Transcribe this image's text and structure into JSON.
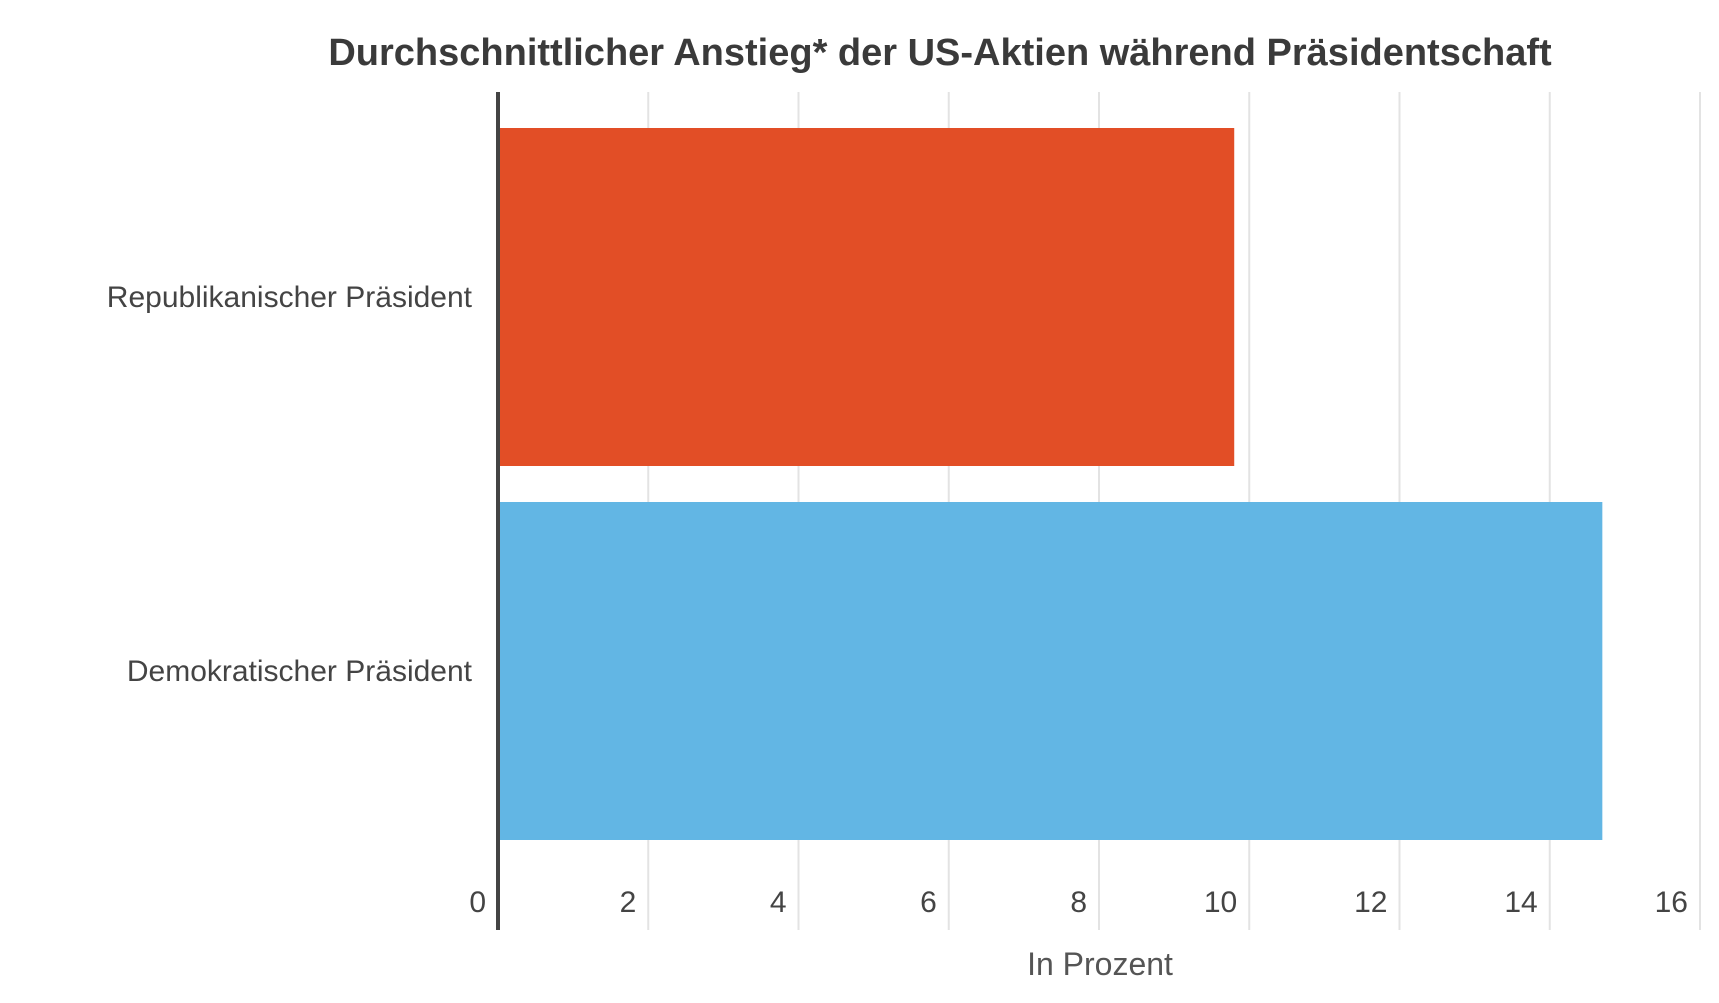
{
  "chart_data": {
    "type": "bar",
    "orientation": "horizontal",
    "title": "Durchschnittlicher Anstieg* der US-Aktien während Präsidentschaft",
    "categories": [
      "Republikanischer Präsident",
      "Demokratischer Präsident"
    ],
    "values": [
      9.8,
      14.7
    ],
    "colors": [
      "#e24e26",
      "#62b6e4"
    ],
    "xlabel": "In Prozent",
    "ylabel": "",
    "xlim": [
      0,
      16
    ],
    "xticks": [
      0,
      2,
      4,
      6,
      8,
      10,
      12,
      14,
      16
    ],
    "grid": "vertical",
    "legend": "none"
  }
}
